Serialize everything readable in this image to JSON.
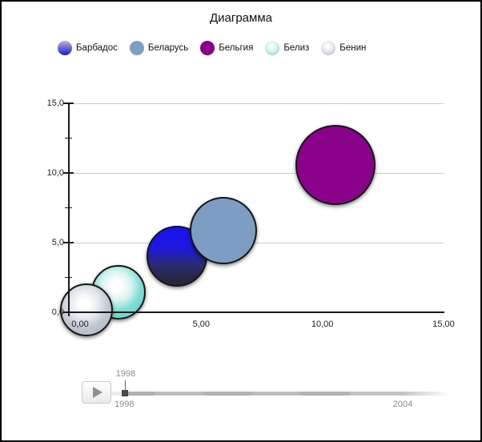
{
  "window": {
    "title": "Диаграмма"
  },
  "legend": {
    "items": [
      {
        "label": "Барбадос",
        "fill": {
          "type": "linear",
          "stops": [
            "#a6a7cd",
            "#6a66d6",
            "#2d25ec"
          ]
        }
      },
      {
        "label": "Беларусь",
        "fill": {
          "type": "flat",
          "color": "#7d9ec2"
        }
      },
      {
        "label": "Бельгия",
        "fill": {
          "type": "flat",
          "color": "#8a018a"
        }
      },
      {
        "label": "Белиз",
        "fill": {
          "type": "radial",
          "stops": [
            "#ffffff",
            "#d0f1ec",
            "#7adcd3"
          ]
        }
      },
      {
        "label": "Бенин",
        "fill": {
          "type": "radial",
          "stops": [
            "#ffffff",
            "#e2e6eb",
            "#b7bfca"
          ]
        }
      }
    ]
  },
  "chart_data": {
    "type": "scatter",
    "subtype": "bubble",
    "title": "Диаграмма",
    "xlabel": "",
    "ylabel": "",
    "xlim": [
      -0.5,
      15
    ],
    "ylim": [
      0,
      15
    ],
    "grid": {
      "horizontal": true,
      "vertical": false,
      "color": "#c9c9c9"
    },
    "legend_position": "top",
    "x_axis": {
      "ticks": [
        {
          "v": 0,
          "label": "0,00"
        },
        {
          "v": 5,
          "label": "5,00"
        },
        {
          "v": 10,
          "label": "10,00"
        },
        {
          "v": 15,
          "label": "15,00"
        }
      ]
    },
    "y_axis": {
      "ticks": [
        {
          "v": 0,
          "label": "0,0"
        },
        {
          "v": 5,
          "label": "5,0"
        },
        {
          "v": 10,
          "label": "10,0"
        },
        {
          "v": 15,
          "label": "15,0"
        }
      ],
      "minor_ticks": [
        2.5,
        7.5,
        12.5
      ]
    },
    "series": [
      {
        "name": "Барбадос",
        "x": 4.0,
        "y": 4.0,
        "radius_px": 38,
        "fill": {
          "type": "linear",
          "stops": [
            "#1913f0",
            "#1e19d8",
            "#2a2a78",
            "#262640"
          ]
        }
      },
      {
        "name": "Беларусь",
        "x": 5.9,
        "y": 5.85,
        "radius_px": 42,
        "fill": {
          "type": "flat",
          "color": "#7d9ec2"
        }
      },
      {
        "name": "Бельгия",
        "x": 10.55,
        "y": 10.6,
        "radius_px": 50,
        "fill": {
          "type": "flat",
          "color": "#8a018a"
        }
      },
      {
        "name": "Белиз",
        "x": 1.6,
        "y": 1.45,
        "radius_px": 34,
        "fill": {
          "type": "radial",
          "stops": [
            "#ffffff",
            "#d9f4f0",
            "#7bdcd3",
            "#6fd4ca"
          ]
        }
      },
      {
        "name": "Бенин",
        "x": 0.25,
        "y": 0.2,
        "radius_px": 33,
        "fill": {
          "type": "radial",
          "stops": [
            "#ffffff",
            "#e6e9ee",
            "#c0c7d1",
            "#b2bac6"
          ]
        }
      }
    ],
    "current_year": "1998"
  },
  "timeline": {
    "tooltip": "1998",
    "start_label": "1998",
    "end_label": "2004"
  }
}
